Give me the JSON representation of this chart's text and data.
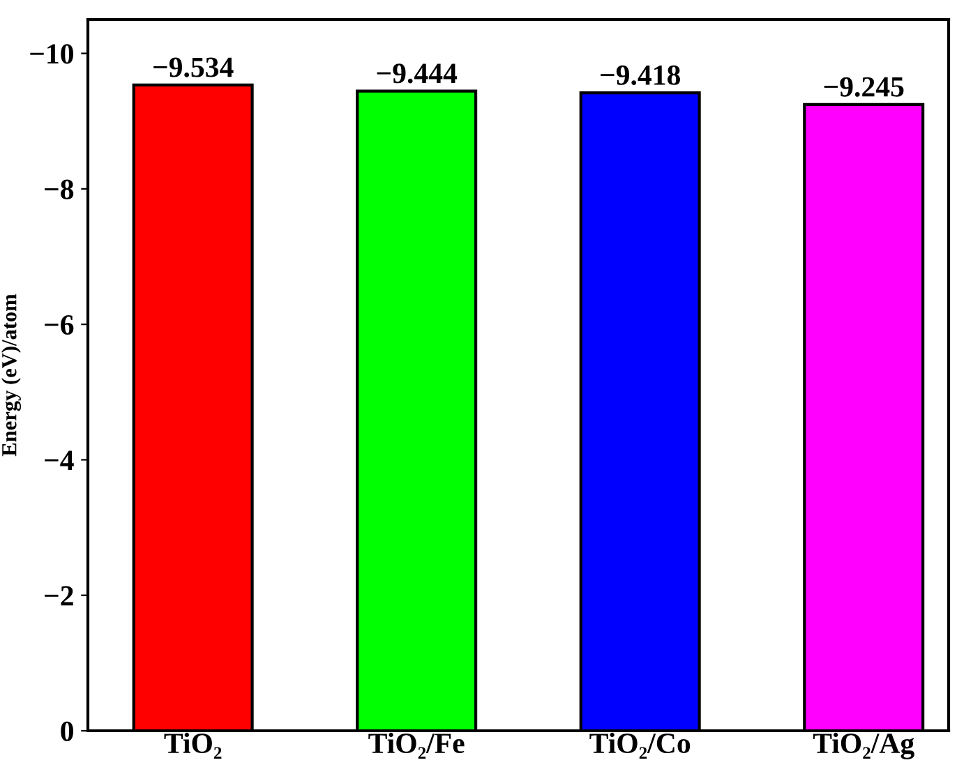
{
  "chart_data": {
    "type": "bar",
    "ylabel": "Energy (eV)/atom",
    "categories": [
      "TiO₂",
      "TiO₂/Fe",
      "TiO₂/Co",
      "TiO₂/Ag"
    ],
    "values": [
      -9.534,
      -9.444,
      -9.418,
      -9.245
    ],
    "colors": [
      "#ff0000",
      "#00ff00",
      "#0000ff",
      "#ff00ff"
    ],
    "ylim": [
      0,
      -10.5
    ],
    "yticks": [
      0,
      -2,
      -4,
      -6,
      -8,
      -10
    ],
    "data_labels": true,
    "grid": false
  }
}
